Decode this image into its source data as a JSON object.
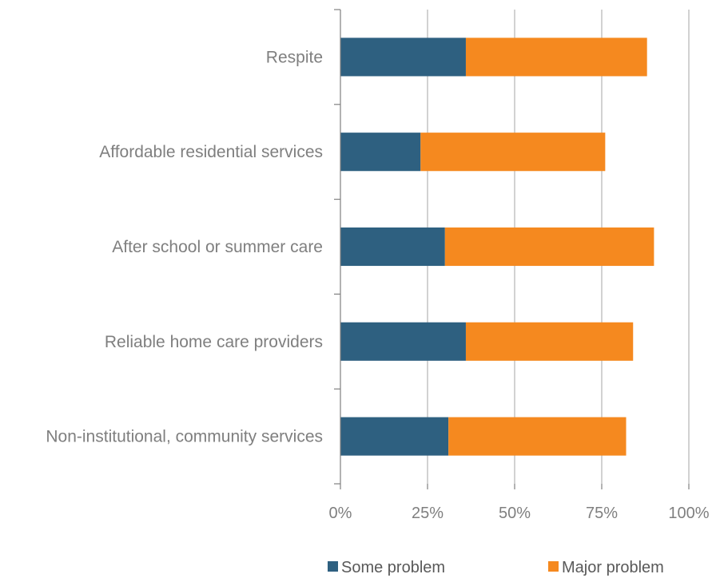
{
  "chart_data": {
    "type": "bar",
    "orientation": "horizontal",
    "stacked": true,
    "categories": [
      "Respite",
      "Affordable residential services",
      "After school or summer care",
      "Reliable home care providers",
      "Non-institutional, community services"
    ],
    "series": [
      {
        "name": "Some problem",
        "color": "#2e6080",
        "values": [
          36,
          23,
          30,
          36,
          31
        ]
      },
      {
        "name": "Major problem",
        "color": "#f5891f",
        "values": [
          52,
          53,
          60,
          48,
          51
        ]
      }
    ],
    "xlim": [
      0,
      100
    ],
    "xticks": [
      0,
      25,
      50,
      75,
      100
    ],
    "xtick_labels": [
      "0%",
      "25%",
      "50%",
      "75%",
      "100%"
    ],
    "grid": "vertical",
    "legend": "bottom"
  }
}
